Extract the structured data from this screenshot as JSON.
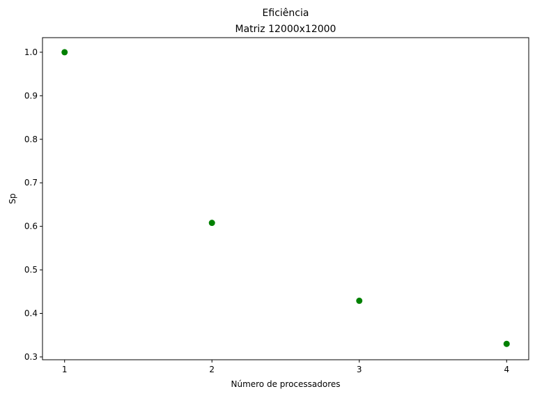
{
  "chart_data": {
    "type": "scatter",
    "title": [
      "Eficiência",
      "Matriz 12000x12000"
    ],
    "xlabel": "Número de processadores",
    "ylabel": "Sp",
    "x_ticks": [
      "1",
      "2",
      "3",
      "4"
    ],
    "y_ticks": [
      "0.3",
      "0.4",
      "0.5",
      "0.6",
      "0.7",
      "0.8",
      "0.9",
      "1.0"
    ],
    "xlim": [
      0.85,
      4.15
    ],
    "ylim": [
      0.2935,
      1.0335
    ],
    "grid": false,
    "marker_color": "#008000",
    "series": [
      {
        "x": [
          1,
          2,
          3,
          4
        ],
        "y": [
          1.0,
          0.608,
          0.429,
          0.33
        ]
      }
    ]
  }
}
